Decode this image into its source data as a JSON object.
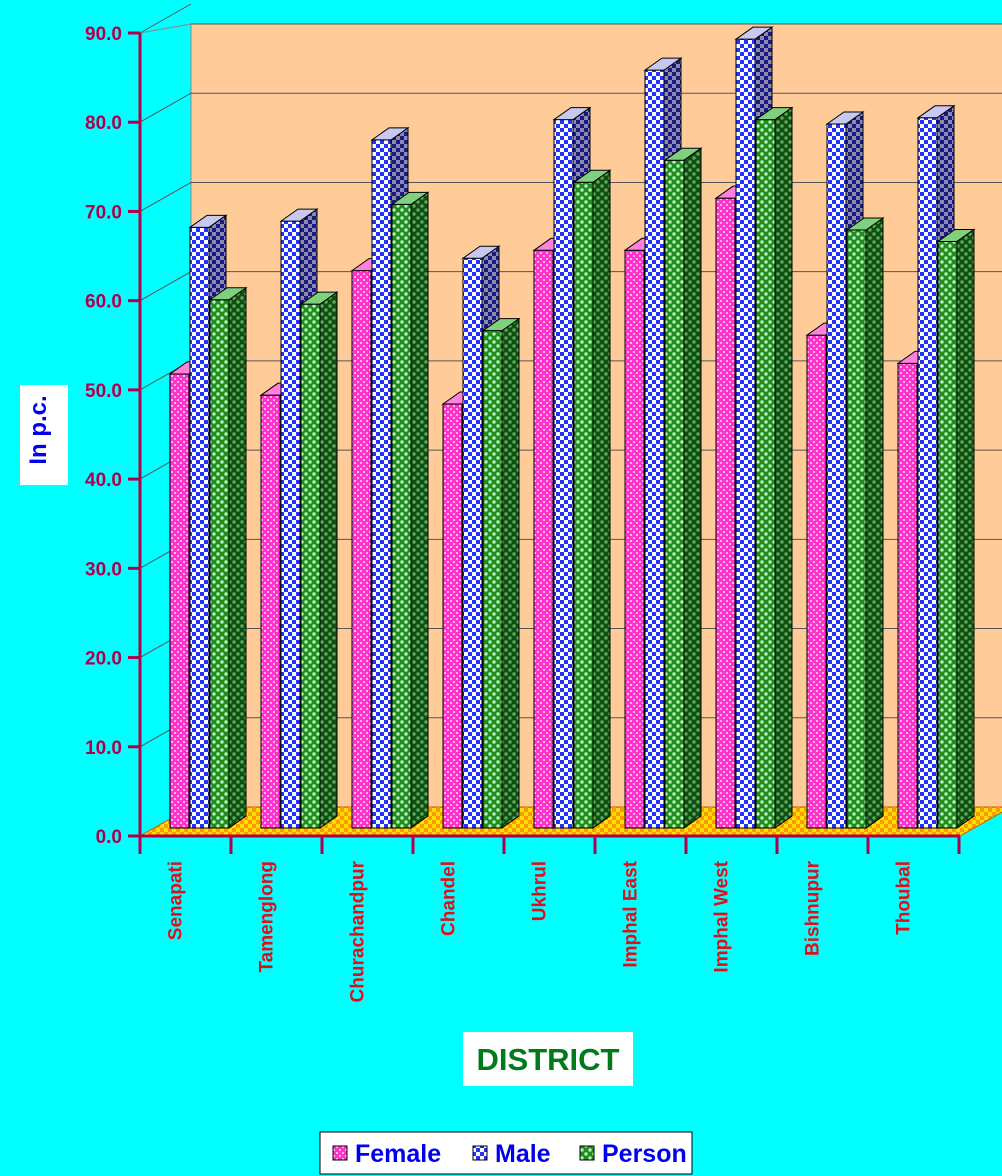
{
  "chart_data": {
    "type": "bar",
    "categories": [
      "Senapati",
      "Tamenglong",
      "Churachandpur",
      "Chandel",
      "Ukhrul",
      "Imphal East",
      "Imphal West",
      "Bishnupur",
      "Thoubal"
    ],
    "series": [
      {
        "name": "Female",
        "values": [
          51.4,
          49.0,
          63.1,
          48.0,
          65.4,
          65.4,
          71.3,
          55.8,
          52.6
        ]
      },
      {
        "name": "Male",
        "values": [
          68.0,
          68.7,
          77.9,
          64.5,
          80.2,
          85.8,
          89.3,
          79.7,
          80.4
        ]
      },
      {
        "name": "Person",
        "values": [
          59.8,
          59.3,
          70.6,
          56.3,
          73.1,
          75.6,
          80.2,
          67.7,
          66.4
        ]
      }
    ],
    "title": "",
    "xlabel": "DISTRICT",
    "ylabel": "In p.c.",
    "ylim": [
      0,
      90
    ],
    "yticks": [
      "0.0",
      "10.0",
      "20.0",
      "30.0",
      "40.0",
      "50.0",
      "60.0",
      "70.0",
      "80.0",
      "90.0"
    ],
    "grid": true,
    "legend_position": "bottom-center"
  },
  "colors": {
    "background": "#00FFFF",
    "plot_wall": "#FFCC99",
    "floor": "#FF9900",
    "female": "#FF33CC",
    "male": "#3333FF",
    "person": "#1A8A1A",
    "tick_label": "#B0004C",
    "category_label": "#E0101A",
    "y_title": "#0000EE",
    "x_title": "#007A1A"
  }
}
